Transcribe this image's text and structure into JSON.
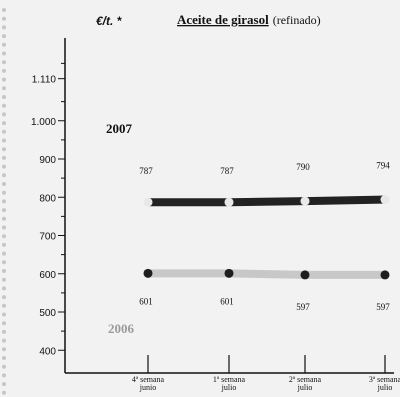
{
  "chart_data": {
    "type": "line",
    "title": "Aceite de girasol",
    "subtitle": "(refinado)",
    "ylabel": "€/t. *",
    "ylim": [
      350,
      1200
    ],
    "yticks": [
      {
        "value": 400,
        "label": "400"
      },
      {
        "value": 500,
        "label": "500"
      },
      {
        "value": 600,
        "label": "600"
      },
      {
        "value": 700,
        "label": "700"
      },
      {
        "value": 800,
        "label": "800"
      },
      {
        "value": 900,
        "label": "900"
      },
      {
        "value": 1000,
        "label": "1.000"
      },
      {
        "value": 1110,
        "label": "1.110"
      }
    ],
    "categories": [
      [
        "4ª semana",
        "junio"
      ],
      [
        "1ª semana",
        "julio"
      ],
      [
        "2ª semana",
        "julio"
      ],
      [
        "3ª semana",
        "julio"
      ]
    ],
    "series": [
      {
        "name": "2007",
        "values": [
          787,
          787,
          790,
          794
        ],
        "color": "#222222",
        "marker": "#e8e8e8"
      },
      {
        "name": "2006",
        "values": [
          601,
          601,
          597,
          597
        ],
        "color": "#c8c8c8",
        "marker": "#1e1e1e"
      }
    ],
    "legend": "left"
  }
}
